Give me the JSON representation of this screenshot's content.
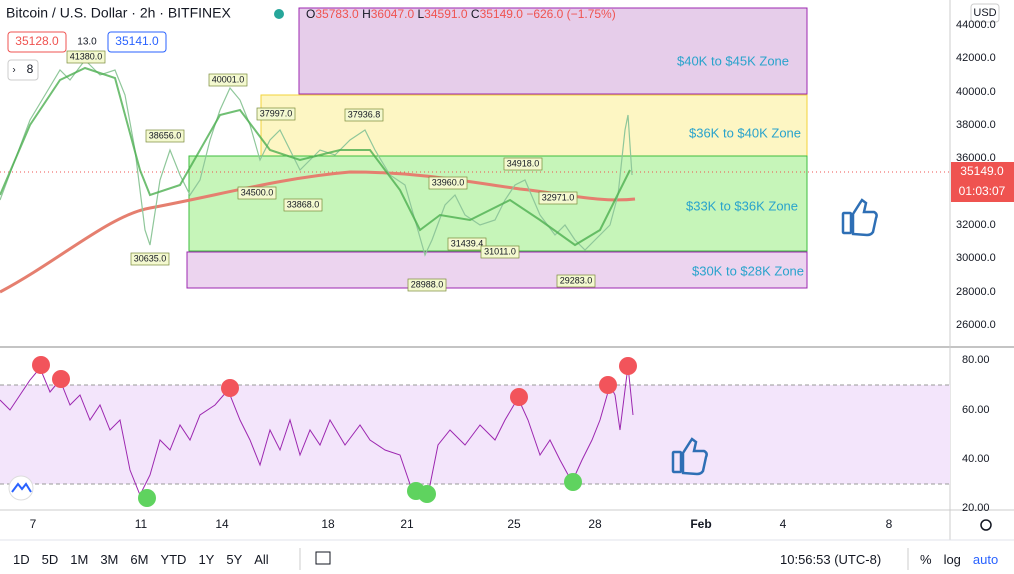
{
  "header": {
    "symbol": "Bitcoin / U.S. Dollar · 2h · BITFINEX",
    "ohlc": [
      {
        "label": "O",
        "value": "35783.0"
      },
      {
        "label": "H",
        "value": "36047.0"
      },
      {
        "label": "L",
        "value": "34591.0"
      },
      {
        "label": "C",
        "value": "35149.0"
      }
    ],
    "change": "−626.0 (−1.75%)",
    "sell_price": "35128.0",
    "spread": "13.0",
    "buy_price": "35141.0",
    "indicator_count": "8"
  },
  "zones": [
    "$40K to $45K Zone",
    "$36K to $40K Zone",
    "$33K to $36K Zone",
    "$30K to $28K Zone"
  ],
  "annotations": [
    "41380.0",
    "40001.0",
    "38656.0",
    "37997.0",
    "37936.8",
    "34500.0",
    "33868.0",
    "33960.0",
    "34918.0",
    "32971.0",
    "31439.4",
    "31011.0",
    "30635.0",
    "28988.0",
    "29283.0"
  ],
  "price_axis": {
    "currency": "USD",
    "ticks": [
      "44000.0",
      "42000.0",
      "40000.0",
      "38000.0",
      "36000.0",
      "32000.0",
      "30000.0",
      "28000.0",
      "26000.0"
    ],
    "current_price": "35149.0",
    "countdown": "01:03:07"
  },
  "rsi_axis": {
    "ticks": [
      "80.00",
      "60.00",
      "40.00",
      "20.00"
    ]
  },
  "time_axis": {
    "labels": [
      "7",
      "11",
      "14",
      "18",
      "21",
      "25",
      "28",
      "Feb",
      "4",
      "8"
    ]
  },
  "toolbar": {
    "ranges": [
      "1D",
      "5D",
      "1M",
      "3M",
      "6M",
      "YTD",
      "1Y",
      "5Y",
      "All"
    ],
    "clock": "10:56:53 (UTC-8)",
    "percent": "%",
    "log": "log",
    "auto": "auto"
  }
}
